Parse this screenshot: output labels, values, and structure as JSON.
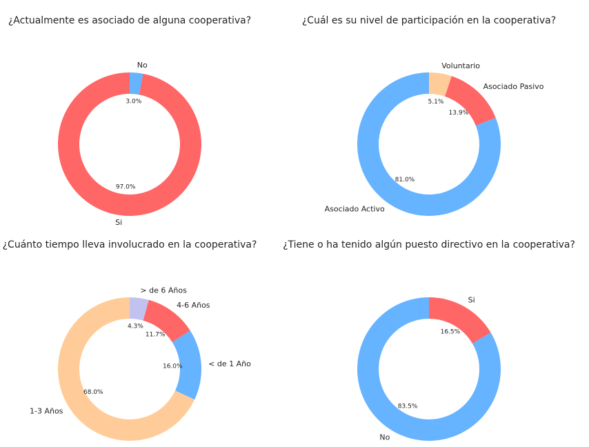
{
  "chart_data": [
    {
      "type": "pie",
      "title": "¿Actualmente es asociado de alguna cooperativa?",
      "categories": [
        "Si",
        "No"
      ],
      "values": [
        97,
        3
      ],
      "value_labels": [
        "97.0%",
        "3.0%"
      ],
      "colors": [
        "#ff6666",
        "#66b3ff"
      ]
    },
    {
      "type": "pie",
      "title": "¿Cuál es su nivel de participación en la cooperativa?",
      "categories": [
        "Asociado Activo",
        "Asociado Pasivo",
        "Voluntario"
      ],
      "values": [
        81,
        13.9,
        5.1
      ],
      "value_labels": [
        "81.0%",
        "13.9%",
        "5.1%"
      ],
      "colors": [
        "#66b3ff",
        "#ff6666",
        "#ffcc99"
      ]
    },
    {
      "type": "pie",
      "title": "¿Cuánto tiempo lleva involucrado en la cooperativa?",
      "categories": [
        "1-3 Años",
        "< de 1 Año",
        "4-6 Años",
        "> de 6 Años"
      ],
      "values": [
        68,
        16,
        11.7,
        4.3
      ],
      "value_labels": [
        "68.0%",
        "16.0%",
        "11.7%",
        "4.3%"
      ],
      "colors": [
        "#ffcc99",
        "#66b3ff",
        "#ff6666",
        "#c2c2f0"
      ]
    },
    {
      "type": "pie",
      "title": "¿Tiene o ha tenido algún puesto directivo en la cooperativa?",
      "categories": [
        "No",
        "Si"
      ],
      "values": [
        83.5,
        16.5
      ],
      "value_labels": [
        "83.5%",
        "16.5%"
      ],
      "colors": [
        "#66b3ff",
        "#ff6666"
      ]
    }
  ]
}
